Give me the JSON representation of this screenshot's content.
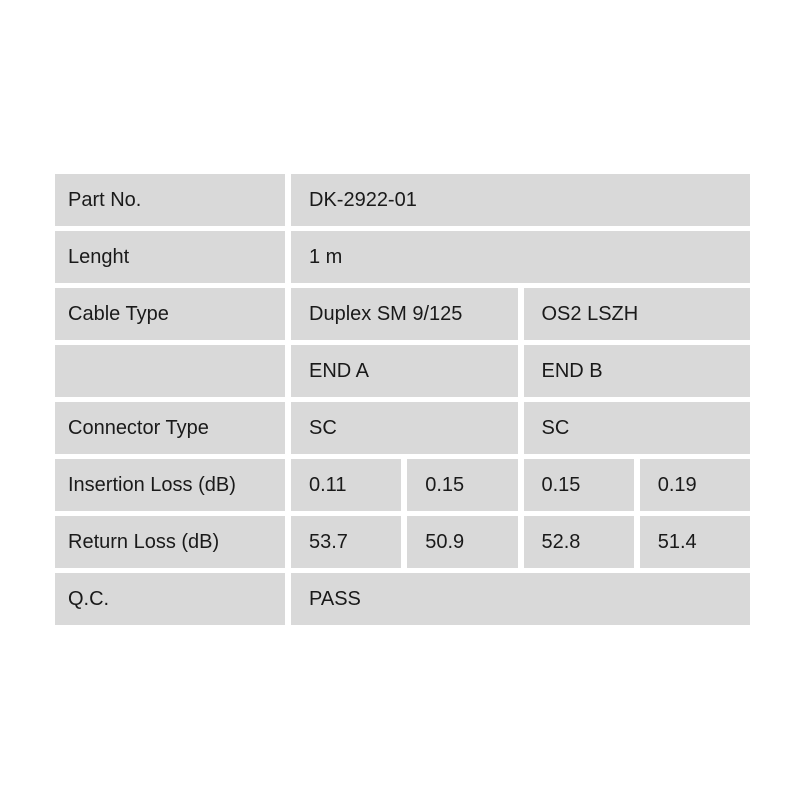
{
  "colors": {
    "cell_background": "#d9d9d9",
    "text": "#1a1a1a",
    "page_background": "#ffffff"
  },
  "table": {
    "rows": [
      {
        "label": "Part No.",
        "cells": [
          {
            "text": "DK-2922-01",
            "span": 4
          }
        ]
      },
      {
        "label": "Lenght",
        "cells": [
          {
            "text": "1 m",
            "span": 4
          }
        ]
      },
      {
        "label": "Cable Type",
        "cells": [
          {
            "text": "Duplex SM 9/125",
            "span": 2
          },
          {
            "text": "OS2 LSZH",
            "span": 2
          }
        ]
      },
      {
        "label": "",
        "cells": [
          {
            "text": "END A",
            "span": 2
          },
          {
            "text": "END B",
            "span": 2
          }
        ]
      },
      {
        "label": "Connector Type",
        "cells": [
          {
            "text": "SC",
            "span": 2
          },
          {
            "text": "SC",
            "span": 2
          }
        ]
      },
      {
        "label": "Insertion Loss (dB)",
        "cells": [
          {
            "text": "0.11",
            "span": 1
          },
          {
            "text": "0.15",
            "span": 1
          },
          {
            "text": "0.15",
            "span": 1
          },
          {
            "text": "0.19",
            "span": 1
          }
        ]
      },
      {
        "label": "Return Loss (dB)",
        "cells": [
          {
            "text": "53.7",
            "span": 1
          },
          {
            "text": "50.9",
            "span": 1
          },
          {
            "text": "52.8",
            "span": 1
          },
          {
            "text": "51.4",
            "span": 1
          }
        ]
      },
      {
        "label": "Q.C.",
        "cells": [
          {
            "text": "PASS",
            "span": 4
          }
        ]
      }
    ]
  }
}
